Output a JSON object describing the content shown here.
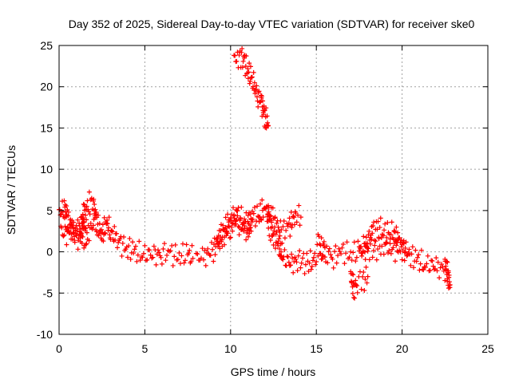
{
  "chart_data": {
    "type": "scatter",
    "title": "Day 352 of 2025, Sidereal Day-to-day VTEC variation (SDTVAR) for receiver ske0",
    "xlabel": "GPS time / hours",
    "ylabel": "SDTVAR / TECUs",
    "xlim": [
      0,
      25
    ],
    "ylim": [
      -10,
      25
    ],
    "xticks": [
      0,
      5,
      10,
      15,
      20,
      25
    ],
    "yticks": [
      -10,
      -5,
      0,
      5,
      10,
      15,
      20,
      25
    ],
    "grid": true,
    "marker": "+",
    "series": [
      {
        "name": "SDTVAR",
        "color": "#ff0000",
        "segments": [
          {
            "x": [
              0.0,
              0.3,
              0.5,
              0.8,
              1.0,
              1.2,
              1.5,
              1.8,
              2.0,
              2.2,
              2.5,
              2.8,
              3.0,
              3.3,
              3.6,
              4.0,
              4.4,
              4.8,
              5.2,
              5.6,
              6.0,
              6.5,
              7.0,
              7.5,
              7.8
            ],
            "y": [
              4.5,
              5.5,
              4.0,
              2.5,
              3.0,
              2.0,
              5.0,
              6.0,
              5.5,
              3.5,
              2.0,
              3.5,
              2.5,
              1.5,
              1.0,
              0.5,
              0.0,
              -0.3,
              -0.2,
              -0.5,
              0.0,
              -0.3,
              -0.5,
              -0.3,
              -0.8
            ]
          },
          {
            "x": [
              0.1,
              0.4,
              0.7,
              1.0,
              1.3,
              1.6
            ],
            "y": [
              2.5,
              2.0,
              3.0,
              1.5,
              2.0,
              1.0
            ]
          },
          {
            "x": [
              1.4,
              1.7,
              2.0
            ],
            "y": [
              3.5,
              2.5,
              3.2
            ]
          },
          {
            "x": [
              8.0,
              8.5,
              9.0,
              9.3,
              9.6,
              9.9,
              10.2,
              10.5,
              10.8,
              11.0,
              11.3,
              11.6,
              11.9,
              12.1,
              12.3,
              12.5,
              12.8,
              13.0,
              13.3,
              13.6,
              13.9,
              14.2,
              14.5,
              14.8,
              15.1
            ],
            "y": [
              -0.8,
              -0.5,
              0.3,
              1.5,
              2.5,
              3.5,
              4.0,
              3.5,
              2.5,
              3.0,
              4.5,
              4.0,
              5.2,
              4.8,
              3.0,
              2.0,
              1.0,
              -0.5,
              -1.0,
              -1.5,
              -0.8,
              -1.2,
              -1.5,
              -1.0,
              -0.5
            ]
          },
          {
            "x": [
              9.2,
              9.6,
              10.0,
              10.4,
              10.8,
              11.2
            ],
            "y": [
              1.0,
              2.0,
              3.2,
              4.5,
              3.8,
              2.5
            ]
          },
          {
            "x": [
              12.2,
              12.6,
              13.0,
              13.4,
              13.8,
              14.1
            ],
            "y": [
              5.0,
              3.5,
              2.5,
              3.0,
              4.5,
              4.2
            ]
          },
          {
            "x": [
              15.2,
              15.6,
              16.0,
              16.5,
              17.0,
              17.5,
              17.8,
              18.0,
              18.3,
              18.6,
              18.9,
              19.2,
              19.5,
              19.8,
              20.1,
              20.5,
              20.9,
              21.3,
              21.7,
              22.1,
              22.5,
              22.7
            ],
            "y": [
              -0.8,
              0.0,
              -0.5,
              0.0,
              -0.2,
              0.0,
              0.5,
              1.5,
              2.5,
              3.0,
              2.5,
              2.0,
              2.5,
              1.0,
              0.5,
              -0.5,
              -1.0,
              -1.5,
              -1.5,
              -2.0,
              -2.0,
              -2.5
            ]
          },
          {
            "x": [
              15.1,
              15.3,
              15.5
            ],
            "y": [
              1.5,
              1.0,
              0.5
            ]
          },
          {
            "x": [
              17.5,
              17.8,
              18.1,
              18.4,
              18.7,
              19.0,
              19.3,
              19.6,
              19.9,
              20.2
            ],
            "y": [
              0.0,
              0.3,
              0.5,
              0.3,
              0.5,
              0.8,
              0.5,
              0.3,
              0.5,
              0.0
            ]
          },
          {
            "x": [
              17.0,
              17.2,
              17.4,
              17.7,
              18.0
            ],
            "y": [
              -3.0,
              -4.5,
              -3.5,
              -3.5,
              -3.0
            ]
          },
          {
            "x": [
              22.5,
              22.7,
              22.8
            ],
            "y": [
              -1.5,
              -3.0,
              -4.0
            ]
          },
          {
            "x": [
              10.2,
              10.4,
              10.6,
              10.8,
              11.0,
              11.2,
              11.4,
              11.6,
              11.8,
              12.0,
              12.2
            ],
            "y": [
              23.2,
              23.5,
              23.8,
              23.0,
              22.0,
              21.0,
              20.0,
              19.0,
              18.0,
              16.5,
              15.3
            ]
          }
        ]
      }
    ]
  }
}
